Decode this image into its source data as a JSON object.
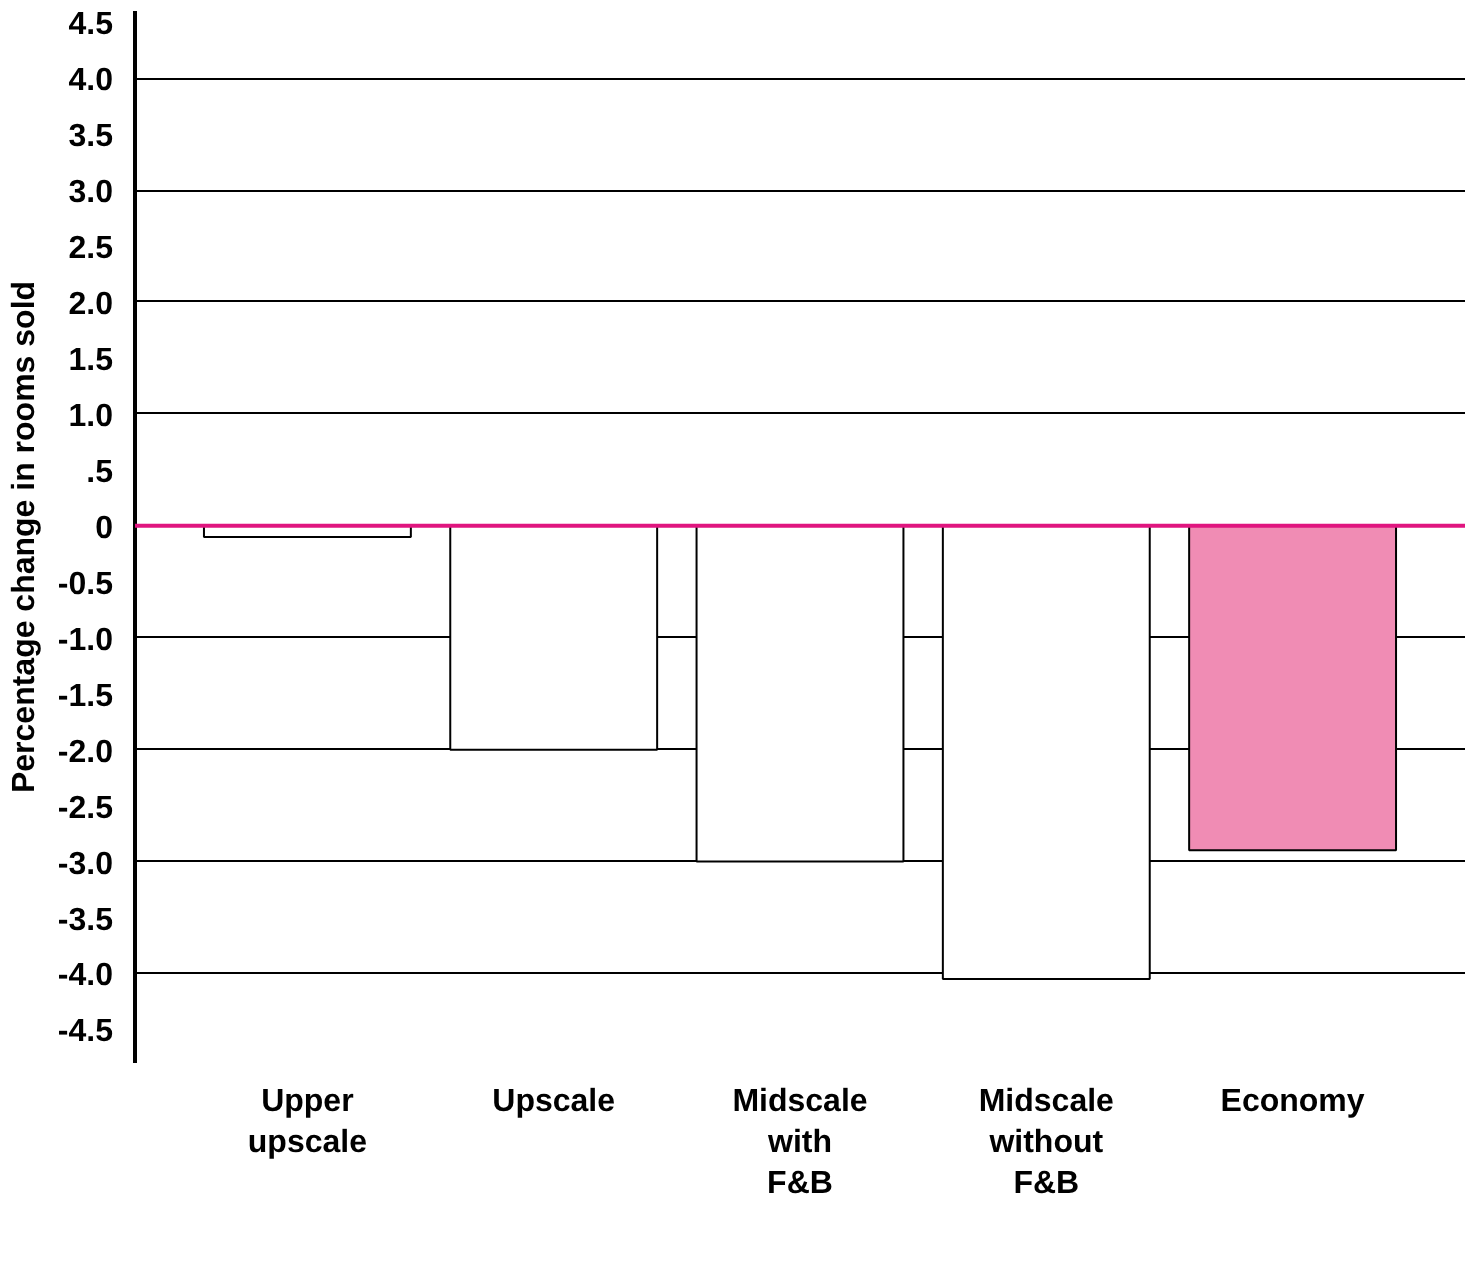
{
  "chart_data": {
    "type": "bar",
    "ylabel": "Percentage change in rooms sold",
    "categories": [
      "Upper\nupscale",
      "Upscale",
      "Midscale\nwith\nF&B",
      "Midscale\nwithout\nF&B",
      "Economy"
    ],
    "values": [
      -0.1,
      -2.0,
      -3.0,
      -4.05,
      -2.9
    ],
    "colors": [
      "#ffffff",
      "#ffffff",
      "#ffffff",
      "#ffffff",
      "#f08cb4"
    ],
    "ylim": [
      -4.8,
      4.6
    ],
    "yticks": [
      4.5,
      {
        "value": 4,
        "label": "4.0"
      },
      3.5,
      {
        "value": 3,
        "label": "3.0"
      },
      2.5,
      {
        "value": 2,
        "label": "2.0"
      },
      1.5,
      {
        "value": 1,
        "label": "1.0"
      },
      {
        "value": 0.5,
        "label": ".5"
      },
      0,
      -0.5,
      {
        "value": -1,
        "label": "-1.0"
      },
      -1.5,
      {
        "value": -2,
        "label": "-2.0"
      },
      -2.5,
      {
        "value": -3,
        "label": "-3.0"
      },
      -3.5,
      {
        "value": -4,
        "label": "-4.0"
      },
      -4.5
    ],
    "grid": "y",
    "ref_lines": [
      {
        "axis": "y",
        "value": 0,
        "label": null,
        "color": "#e0157f"
      }
    ]
  }
}
